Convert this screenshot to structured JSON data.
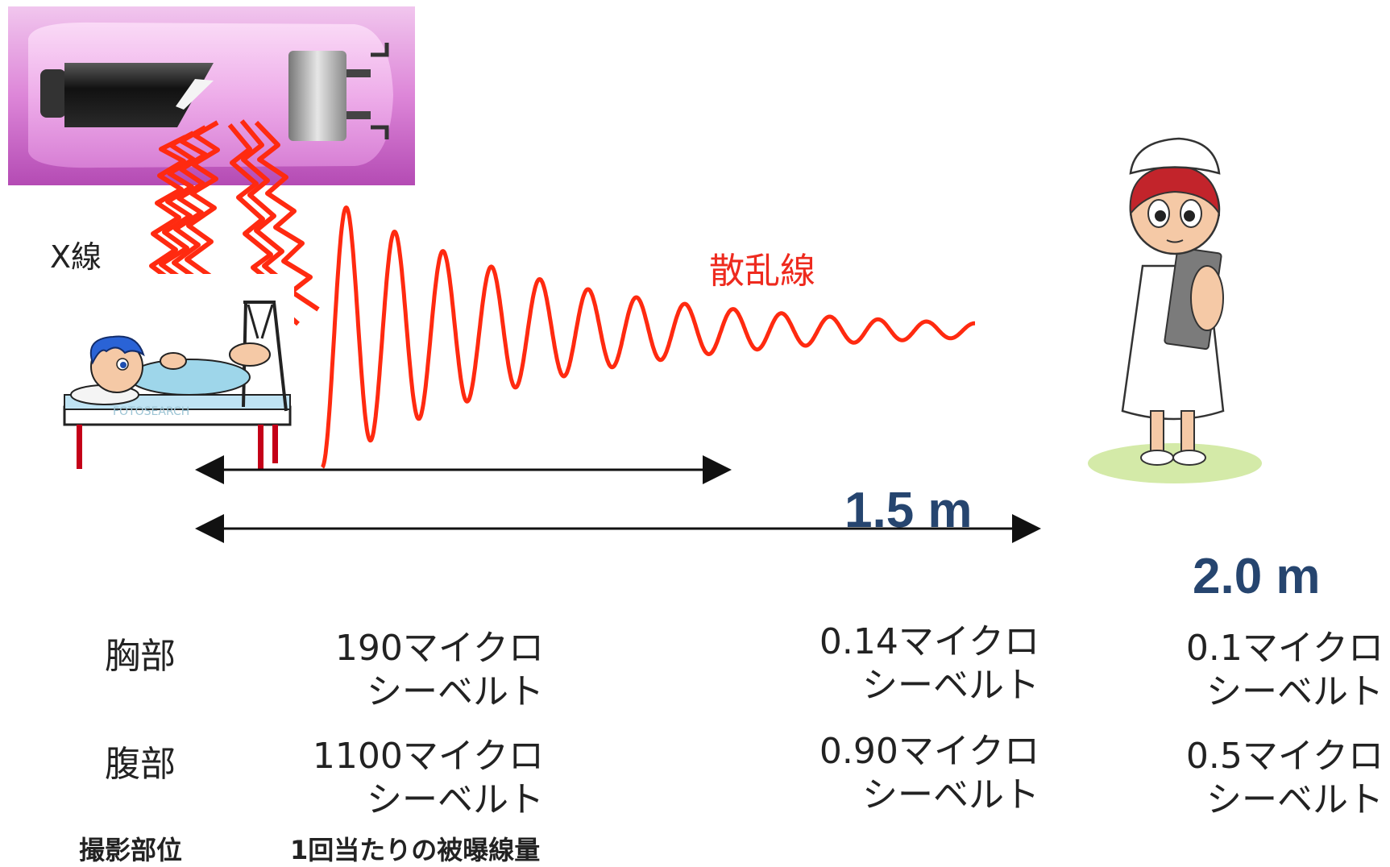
{
  "labels": {
    "xray": "X線",
    "scatter": "散乱線"
  },
  "distances": {
    "near": "1.5 m",
    "far": "2.0 m"
  },
  "rows": [
    {
      "part": "胸部",
      "dose_patient": [
        "190マイクロ",
        "シーベルト"
      ],
      "dose_1_5m": [
        "0.14マイクロ",
        "シーベルト"
      ],
      "dose_2_0m": [
        "0.1マイクロ",
        "シーベルト"
      ]
    },
    {
      "part": "腹部",
      "dose_patient": [
        "1100マイクロ",
        "シーベルト"
      ],
      "dose_1_5m": [
        "0.90マイクロ",
        "シーベルト"
      ],
      "dose_2_0m": [
        "0.5マイクロ",
        "シーベルト"
      ]
    }
  ],
  "footer": {
    "site_header": "撮影部位",
    "dose_header": "1回当たりの被曝線量"
  },
  "watermark": "FOTOSEARCH",
  "colors": {
    "wave": "#ff2a10",
    "distance_text": "#26456f",
    "tube_bg": "#d56fd0"
  }
}
